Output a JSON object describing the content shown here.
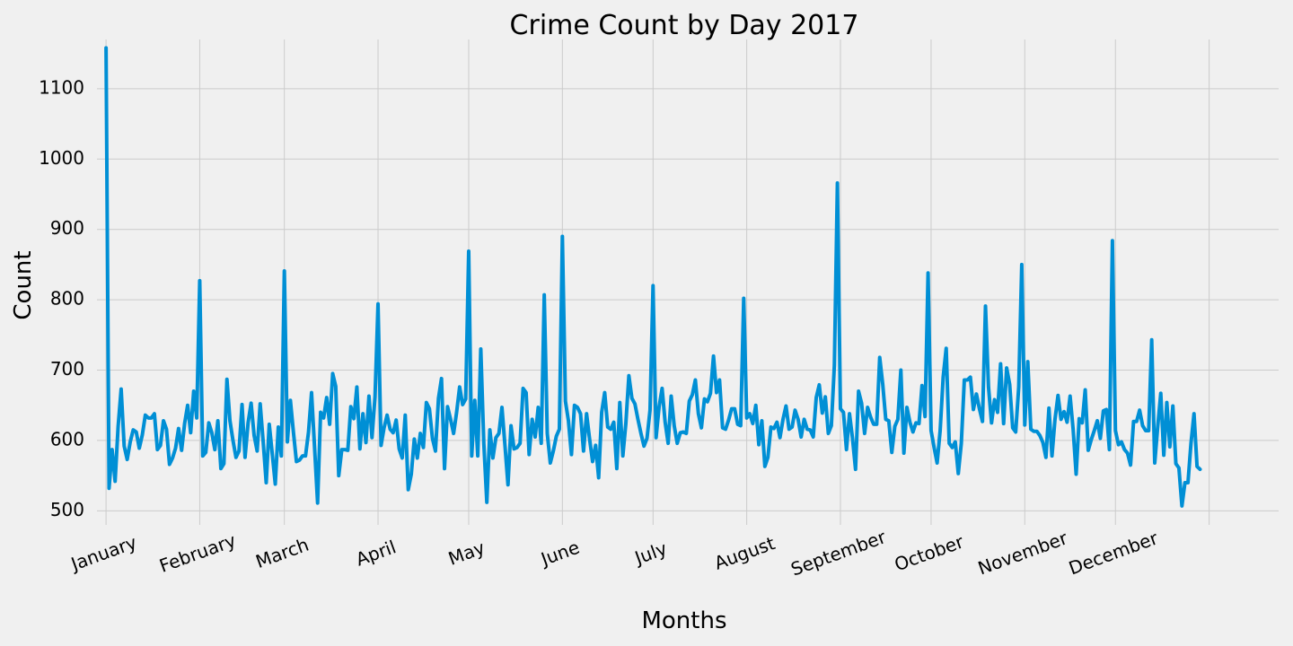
{
  "chart_data": {
    "type": "line",
    "title": "Crime Count by Day 2017",
    "xlabel": "Months",
    "ylabel": "Count",
    "grid": true,
    "ylim": [
      480,
      1170
    ],
    "yticks": [
      500,
      600,
      700,
      800,
      900,
      1000,
      1100
    ],
    "xticks": [
      {
        "label": "January",
        "day": 0
      },
      {
        "label": "February",
        "day": 31
      },
      {
        "label": "March",
        "day": 59
      },
      {
        "label": "April",
        "day": 90
      },
      {
        "label": "May",
        "day": 120
      },
      {
        "label": "June",
        "day": 151
      },
      {
        "label": "July",
        "day": 181
      },
      {
        "label": "August",
        "day": 212
      },
      {
        "label": "September",
        "day": 243
      },
      {
        "label": "October",
        "day": 273
      },
      {
        "label": "November",
        "day": 304
      },
      {
        "label": "December",
        "day": 334
      },
      {
        "label": "",
        "day": 365
      }
    ],
    "xlim": [
      -3,
      388
    ],
    "series": [
      {
        "color": "#008fd5",
        "values": [
          1158,
          532,
          587,
          542,
          620,
          673,
          592,
          573,
          598,
          615,
          612,
          589,
          608,
          636,
          632,
          632,
          638,
          587,
          593,
          628,
          616,
          566,
          575,
          589,
          617,
          586,
          624,
          650,
          611,
          670,
          632,
          827,
          578,
          583,
          625,
          611,
          587,
          628,
          560,
          567,
          687,
          628,
          600,
          576,
          585,
          651,
          576,
          625,
          653,
          607,
          585,
          652,
          598,
          540,
          623,
          581,
          538,
          619,
          578,
          841,
          598,
          657,
          612,
          570,
          572,
          578,
          578,
          612,
          668,
          590,
          511,
          640,
          632,
          661,
          623,
          695,
          677,
          550,
          587,
          587,
          586,
          648,
          631,
          676,
          588,
          638,
          597,
          663,
          604,
          662,
          794,
          593,
          618,
          636,
          616,
          611,
          629,
          588,
          575,
          636,
          530,
          552,
          602,
          575,
          610,
          590,
          654,
          645,
          603,
          585,
          660,
          688,
          560,
          648,
          630,
          610,
          640,
          676,
          651,
          659,
          869,
          578,
          657,
          578,
          730,
          596,
          512,
          615,
          575,
          604,
          610,
          647,
          593,
          537,
          621,
          588,
          590,
          596,
          674,
          668,
          580,
          630,
          605,
          647,
          596,
          807,
          610,
          568,
          585,
          606,
          616,
          890,
          656,
          628,
          580,
          650,
          647,
          638,
          585,
          638,
          602,
          570,
          593,
          547,
          640,
          668,
          619,
          616,
          626,
          560,
          654,
          578,
          624,
          692,
          660,
          652,
          630,
          610,
          592,
          603,
          643,
          820,
          604,
          648,
          674,
          626,
          596,
          663,
          621,
          596,
          611,
          612,
          610,
          656,
          665,
          686,
          638,
          618,
          659,
          655,
          667,
          720,
          668,
          686,
          618,
          616,
          629,
          645,
          645,
          623,
          621,
          802,
          632,
          638,
          624,
          650,
          594,
          628,
          563,
          576,
          619,
          617,
          626,
          604,
          630,
          649,
          616,
          619,
          643,
          630,
          605,
          630,
          616,
          615,
          605,
          661,
          679,
          639,
          662,
          610,
          621,
          707,
          966,
          645,
          640,
          587,
          638,
          603,
          559,
          670,
          653,
          610,
          647,
          633,
          623,
          623,
          718,
          680,
          630,
          628,
          583,
          620,
          630,
          700,
          582,
          647,
          626,
          612,
          625,
          624,
          678,
          634,
          838,
          614,
          590,
          568,
          614,
          690,
          731,
          596,
          590,
          598,
          553,
          596,
          686,
          686,
          690,
          644,
          666,
          645,
          627,
          791,
          676,
          625,
          658,
          640,
          709,
          624,
          703,
          680,
          618,
          612,
          676,
          850,
          622,
          712,
          616,
          613,
          613,
          607,
          597,
          576,
          646,
          578,
          630,
          664,
          630,
          641,
          626,
          663,
          616,
          552,
          631,
          625,
          672,
          586,
          601,
          614,
          628,
          603,
          642,
          644,
          587,
          884,
          614,
          594,
          598,
          587,
          582,
          565,
          627,
          627,
          643,
          621,
          614,
          614,
          743,
          568,
          620,
          667,
          579,
          654,
          591,
          649,
          567,
          561,
          507,
          540,
          540,
          596,
          638,
          563,
          559
        ]
      }
    ]
  }
}
